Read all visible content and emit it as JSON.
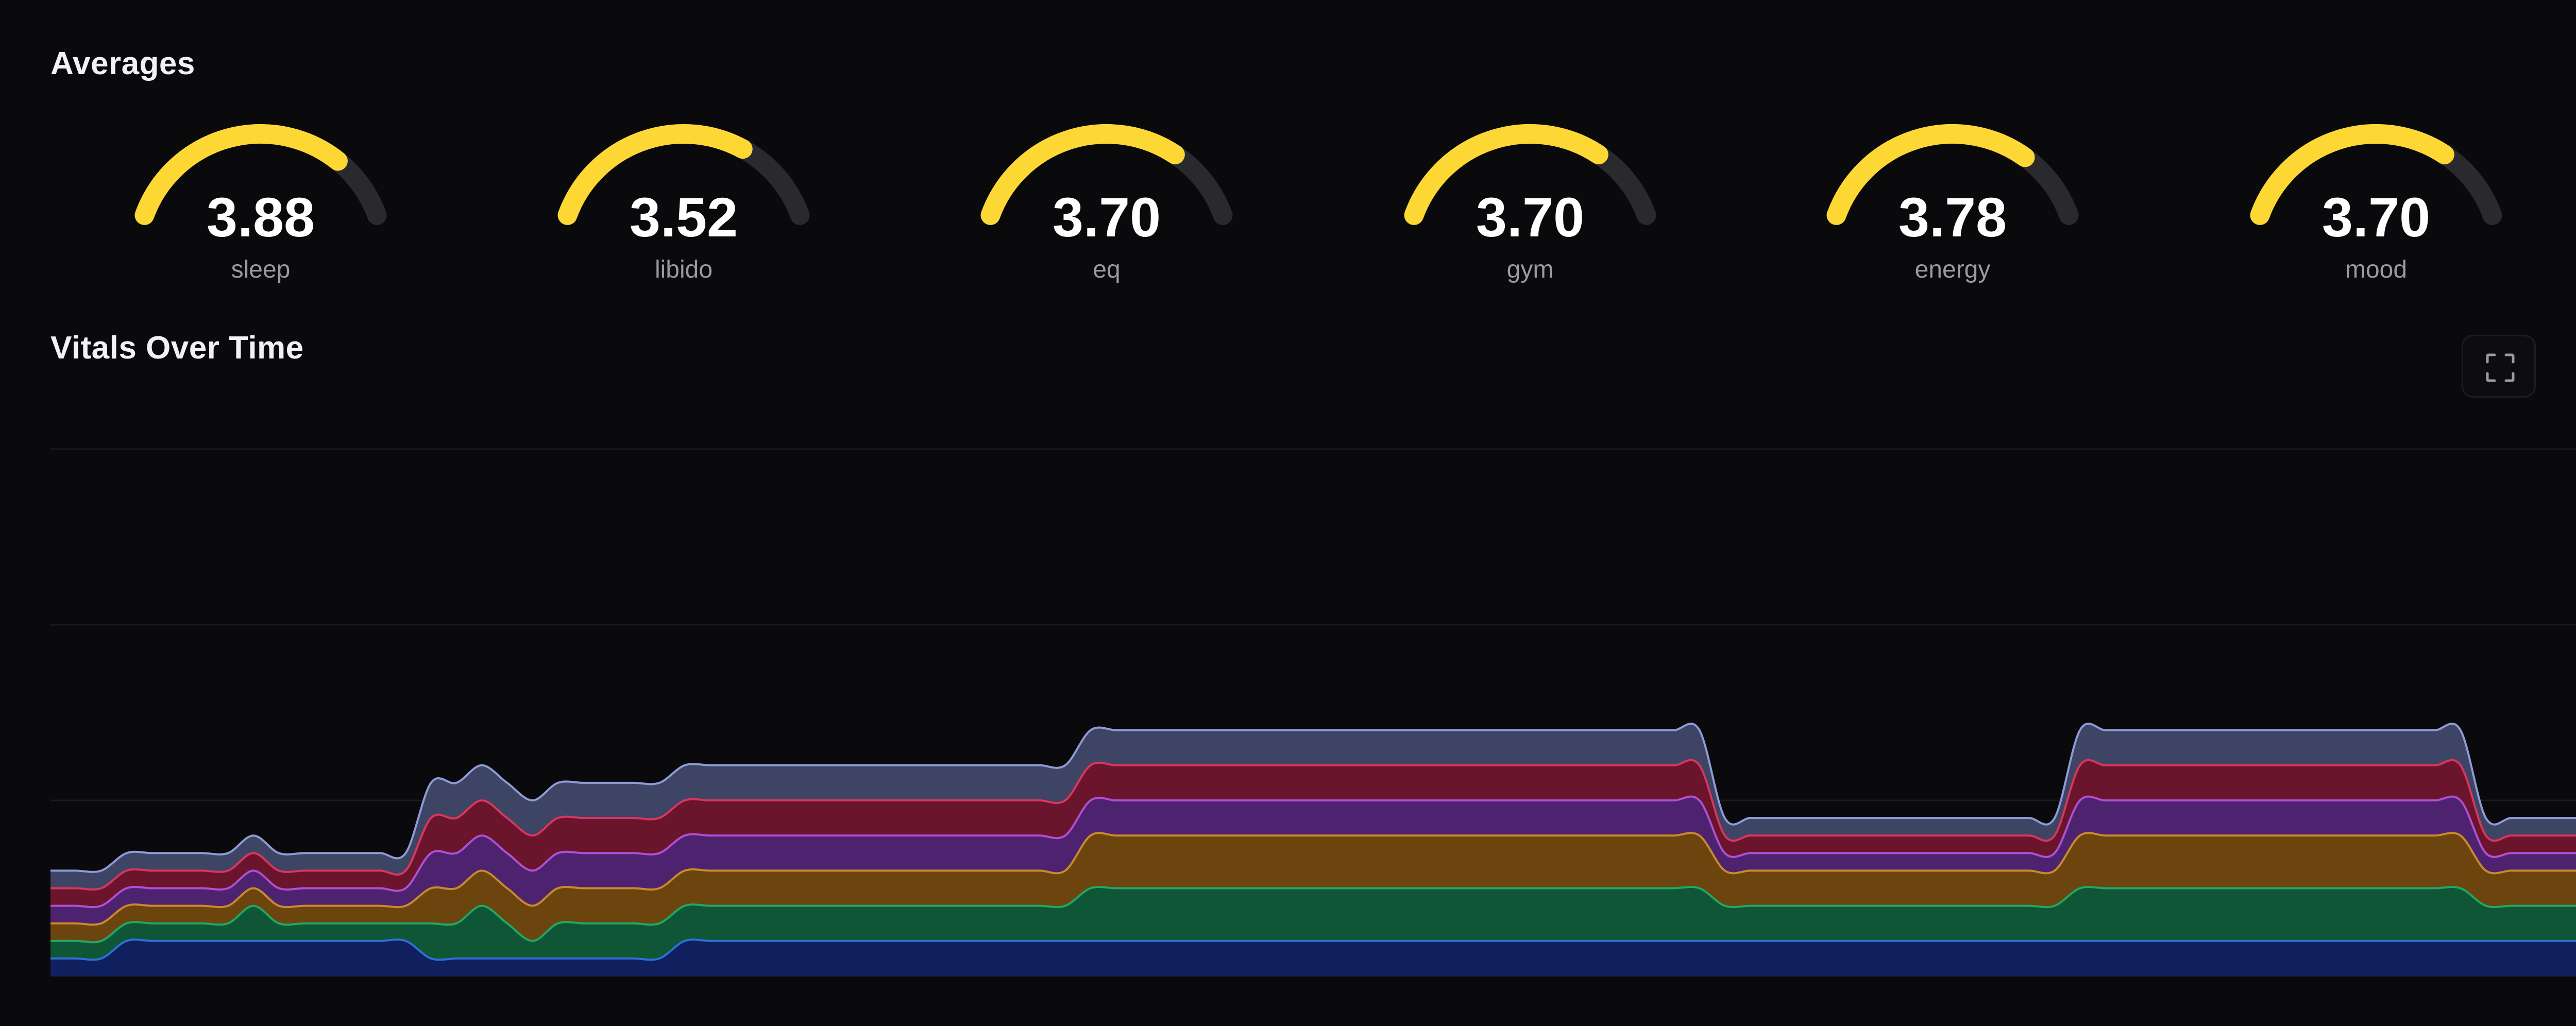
{
  "averages": {
    "title": "Averages",
    "max_value": 5,
    "accent_color": "#fdd835",
    "track_color": "#2a2a2e",
    "gauges": [
      {
        "label": "sleep",
        "value": "3.88"
      },
      {
        "label": "libido",
        "value": "3.52"
      },
      {
        "label": "eq",
        "value": "3.70"
      },
      {
        "label": "gym",
        "value": "3.70"
      },
      {
        "label": "energy",
        "value": "3.78"
      },
      {
        "label": "mood",
        "value": "3.70"
      }
    ]
  },
  "vitals": {
    "title": "Vitals Over Time",
    "fullscreen_icon": "expand-icon"
  },
  "chart_data": {
    "type": "area",
    "stacked": true,
    "smooth": true,
    "grid": true,
    "legend": "none",
    "ylim": [
      0,
      30
    ],
    "series": [
      {
        "fill": "#10205e",
        "stroke": "#2f6fd6",
        "values": [
          1,
          1,
          1,
          2,
          2,
          2,
          2,
          2,
          2,
          2,
          2,
          2,
          2,
          2,
          2,
          1,
          1,
          1,
          1,
          1,
          1,
          1,
          1,
          1,
          1,
          2,
          2,
          2,
          2,
          2,
          2,
          2,
          2,
          2,
          2,
          2,
          2,
          2,
          2,
          2,
          2,
          2,
          2,
          2,
          2,
          2,
          2,
          2,
          2,
          2,
          2,
          2,
          2,
          2,
          2,
          2,
          2,
          2,
          2,
          2,
          2,
          2,
          2,
          2,
          2,
          2,
          2,
          2,
          2,
          2,
          2,
          2,
          2,
          2,
          2,
          2,
          2,
          2,
          2,
          2,
          2,
          2,
          2,
          2,
          2,
          2,
          2,
          2,
          2,
          2,
          2,
          2,
          2,
          2,
          2,
          2,
          2,
          2,
          2,
          2,
          2
        ]
      },
      {
        "fill": "#0f5636",
        "stroke": "#1fa865",
        "values": [
          1,
          1,
          1,
          1,
          1,
          1,
          1,
          1,
          2,
          1,
          1,
          1,
          1,
          1,
          1,
          2,
          2,
          3,
          2,
          1,
          2,
          2,
          2,
          2,
          2,
          2,
          2,
          2,
          2,
          2,
          2,
          2,
          2,
          2,
          2,
          2,
          2,
          2,
          2,
          2,
          2,
          3,
          3,
          3,
          3,
          3,
          3,
          3,
          3,
          3,
          3,
          3,
          3,
          3,
          3,
          3,
          3,
          3,
          3,
          3,
          3,
          3,
          3,
          3,
          3,
          3,
          2,
          2,
          2,
          2,
          2,
          2,
          2,
          2,
          2,
          2,
          2,
          2,
          2,
          2,
          3,
          3,
          3,
          3,
          3,
          3,
          3,
          3,
          3,
          3,
          3,
          3,
          3,
          3,
          3,
          3,
          2,
          2,
          2,
          2,
          2
        ]
      },
      {
        "fill": "#6b440e",
        "stroke": "#c98a2a",
        "values": [
          1,
          1,
          1,
          1,
          1,
          1,
          1,
          1,
          1,
          1,
          1,
          1,
          1,
          1,
          1,
          2,
          2,
          2,
          2,
          2,
          2,
          2,
          2,
          2,
          2,
          2,
          2,
          2,
          2,
          2,
          2,
          2,
          2,
          2,
          2,
          2,
          2,
          2,
          2,
          2,
          2,
          3,
          3,
          3,
          3,
          3,
          3,
          3,
          3,
          3,
          3,
          3,
          3,
          3,
          3,
          3,
          3,
          3,
          3,
          3,
          3,
          3,
          3,
          3,
          3,
          3,
          2,
          2,
          2,
          2,
          2,
          2,
          2,
          2,
          2,
          2,
          2,
          2,
          2,
          2,
          3,
          3,
          3,
          3,
          3,
          3,
          3,
          3,
          3,
          3,
          3,
          3,
          3,
          3,
          3,
          3,
          2,
          2,
          2,
          2,
          2
        ]
      },
      {
        "fill": "#4d2370",
        "stroke": "#b04fd6",
        "values": [
          1,
          1,
          1,
          1,
          1,
          1,
          1,
          1,
          1,
          1,
          1,
          1,
          1,
          1,
          1,
          2,
          2,
          2,
          2,
          2,
          2,
          2,
          2,
          2,
          2,
          2,
          2,
          2,
          2,
          2,
          2,
          2,
          2,
          2,
          2,
          2,
          2,
          2,
          2,
          2,
          2,
          2,
          2,
          2,
          2,
          2,
          2,
          2,
          2,
          2,
          2,
          2,
          2,
          2,
          2,
          2,
          2,
          2,
          2,
          2,
          2,
          2,
          2,
          2,
          2,
          2,
          1,
          1,
          1,
          1,
          1,
          1,
          1,
          1,
          1,
          1,
          1,
          1,
          1,
          1,
          2,
          2,
          2,
          2,
          2,
          2,
          2,
          2,
          2,
          2,
          2,
          2,
          2,
          2,
          2,
          2,
          1,
          1,
          1,
          1,
          1
        ]
      },
      {
        "fill": "#6a152c",
        "stroke": "#d9365f",
        "values": [
          1,
          1,
          1,
          1,
          1,
          1,
          1,
          1,
          1,
          1,
          1,
          1,
          1,
          1,
          1,
          2,
          2,
          2,
          2,
          2,
          2,
          2,
          2,
          2,
          2,
          2,
          2,
          2,
          2,
          2,
          2,
          2,
          2,
          2,
          2,
          2,
          2,
          2,
          2,
          2,
          2,
          2,
          2,
          2,
          2,
          2,
          2,
          2,
          2,
          2,
          2,
          2,
          2,
          2,
          2,
          2,
          2,
          2,
          2,
          2,
          2,
          2,
          2,
          2,
          2,
          2,
          1,
          1,
          1,
          1,
          1,
          1,
          1,
          1,
          1,
          1,
          1,
          1,
          1,
          1,
          2,
          2,
          2,
          2,
          2,
          2,
          2,
          2,
          2,
          2,
          2,
          2,
          2,
          2,
          2,
          2,
          1,
          1,
          1,
          1,
          1
        ]
      },
      {
        "fill": "#3e4463",
        "stroke": "#8e9bd8",
        "values": [
          1,
          1,
          1,
          1,
          1,
          1,
          1,
          1,
          1,
          1,
          1,
          1,
          1,
          1,
          1,
          2,
          2,
          2,
          2,
          2,
          2,
          2,
          2,
          2,
          2,
          2,
          2,
          2,
          2,
          2,
          2,
          2,
          2,
          2,
          2,
          2,
          2,
          2,
          2,
          2,
          2,
          2,
          2,
          2,
          2,
          2,
          2,
          2,
          2,
          2,
          2,
          2,
          2,
          2,
          2,
          2,
          2,
          2,
          2,
          2,
          2,
          2,
          2,
          2,
          2,
          2,
          1,
          1,
          1,
          1,
          1,
          1,
          1,
          1,
          1,
          1,
          1,
          1,
          1,
          1,
          2,
          2,
          2,
          2,
          2,
          2,
          2,
          2,
          2,
          2,
          2,
          2,
          2,
          2,
          2,
          2,
          1,
          1,
          1,
          1,
          1
        ]
      }
    ]
  }
}
